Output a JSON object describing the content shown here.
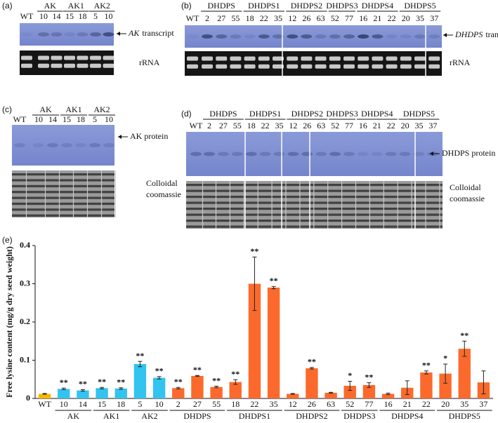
{
  "panel_a": {
    "label": "(a)",
    "wt": "WT",
    "groups": [
      {
        "name": "AK",
        "lanes": [
          "10",
          "14"
        ]
      },
      {
        "name": "AK1",
        "lanes": [
          "15",
          "18"
        ]
      },
      {
        "name": "AK2",
        "lanes": [
          "5",
          "10"
        ]
      }
    ],
    "target_gene": "AK",
    "target_suffix": "transcript",
    "control": "rRNA"
  },
  "panel_b": {
    "label": "(b)",
    "wt": "WT",
    "groups": [
      {
        "name": "DHDPS",
        "lanes": [
          "2",
          "27",
          "55"
        ]
      },
      {
        "name": "DHDPS1",
        "lanes": [
          "18",
          "22",
          "35"
        ]
      },
      {
        "name": "DHDPS2",
        "lanes": [
          "12",
          "26",
          "63"
        ]
      },
      {
        "name": "DHDPS3",
        "lanes": [
          "52",
          "77"
        ]
      },
      {
        "name": "DHDPS4",
        "lanes": [
          "16",
          "21",
          "22"
        ]
      },
      {
        "name": "DHDPS5",
        "lanes": [
          "20",
          "35",
          "37"
        ]
      }
    ],
    "target_gene": "DHDPS",
    "target_suffix": "transcript",
    "control": "rRNA"
  },
  "panel_c": {
    "label": "(c)",
    "wt": "WT",
    "groups": [
      {
        "name": "AK",
        "lanes": [
          "10",
          "14"
        ]
      },
      {
        "name": "AK1",
        "lanes": [
          "15",
          "18"
        ]
      },
      {
        "name": "AK2",
        "lanes": [
          "5",
          "10"
        ]
      }
    ],
    "target": "AK protein",
    "control_lines": [
      "Colloidal",
      "coomassie"
    ]
  },
  "panel_d": {
    "label": "(d)",
    "wt": "WT",
    "groups": [
      {
        "name": "DHDPS",
        "lanes": [
          "2",
          "27",
          "55"
        ]
      },
      {
        "name": "DHDPS1",
        "lanes": [
          "18",
          "22",
          "35"
        ]
      },
      {
        "name": "DHDPS2",
        "lanes": [
          "12",
          "26",
          "63"
        ]
      },
      {
        "name": "DHDPS3",
        "lanes": [
          "52",
          "77"
        ]
      },
      {
        "name": "DHDPS4",
        "lanes": [
          "16",
          "21",
          "22"
        ]
      },
      {
        "name": "DHDPS5",
        "lanes": [
          "20",
          "35",
          "37"
        ]
      }
    ],
    "target": "DHDPS protein",
    "control_lines": [
      "Colloidal",
      "coomassie"
    ]
  },
  "chart_data": {
    "type": "bar",
    "panel_label": "(e)",
    "ylabel": "Free lysine content (mg/g dry seed weight)",
    "ylim": [
      0,
      0.4
    ],
    "yticks": [
      0,
      0.1,
      0.2,
      0.3,
      0.4
    ],
    "groups": [
      {
        "name": null,
        "color": "#f5b800",
        "categories": [
          "WT"
        ],
        "values": [
          0.012
        ],
        "errors": [
          0.001
        ],
        "significance": [
          null
        ]
      },
      {
        "name": "AK",
        "color": "#33c3ef",
        "categories": [
          "10",
          "14"
        ],
        "values": [
          0.025,
          0.021
        ],
        "errors": [
          0.002,
          0.002
        ],
        "significance": [
          "**",
          "**"
        ]
      },
      {
        "name": "AK1",
        "color": "#33c3ef",
        "categories": [
          "15",
          "18"
        ],
        "values": [
          0.027,
          0.026
        ],
        "errors": [
          0.002,
          0.002
        ],
        "significance": [
          "**",
          "**"
        ]
      },
      {
        "name": "AK2",
        "color": "#33c3ef",
        "categories": [
          "5",
          "10"
        ],
        "values": [
          0.09,
          0.054
        ],
        "errors": [
          0.007,
          0.003
        ],
        "significance": [
          "**",
          "**"
        ]
      },
      {
        "name": "DHDPS",
        "color": "#fb6a2c",
        "categories": [
          "2",
          "27",
          "55"
        ],
        "values": [
          0.027,
          0.059,
          0.03
        ],
        "errors": [
          0.002,
          0.001,
          0.002
        ],
        "significance": [
          "**",
          "**",
          "**"
        ]
      },
      {
        "name": "DHDPS1",
        "color": "#fb6a2c",
        "categories": [
          "18",
          "22",
          "35"
        ],
        "values": [
          0.043,
          0.3,
          0.29
        ],
        "errors": [
          0.006,
          0.07,
          0.003
        ],
        "significance": [
          "**",
          "**",
          "**"
        ]
      },
      {
        "name": "DHDPS2",
        "color": "#fb6a2c",
        "categories": [
          "12",
          "26",
          "63"
        ],
        "values": [
          0.012,
          0.079,
          0.015
        ],
        "errors": [
          0.001,
          0.002,
          0.001
        ],
        "significance": [
          null,
          "**",
          null
        ]
      },
      {
        "name": "DHDPS3",
        "color": "#fb6a2c",
        "categories": [
          "52",
          "77"
        ],
        "values": [
          0.033,
          0.035
        ],
        "errors": [
          0.012,
          0.006
        ],
        "significance": [
          "*",
          "**"
        ]
      },
      {
        "name": "DHDPS4",
        "color": "#fb6a2c",
        "categories": [
          "16",
          "21",
          "22"
        ],
        "values": [
          0.012,
          0.028,
          0.068
        ],
        "errors": [
          0.002,
          0.018,
          0.004
        ],
        "significance": [
          null,
          null,
          "**"
        ]
      },
      {
        "name": "DHDPS5",
        "color": "#fb6a2c",
        "categories": [
          "20",
          "35",
          "37"
        ],
        "values": [
          0.065,
          0.13,
          0.042
        ],
        "errors": [
          0.025,
          0.02,
          0.03
        ],
        "significance": [
          "*",
          "**",
          null
        ]
      }
    ]
  }
}
